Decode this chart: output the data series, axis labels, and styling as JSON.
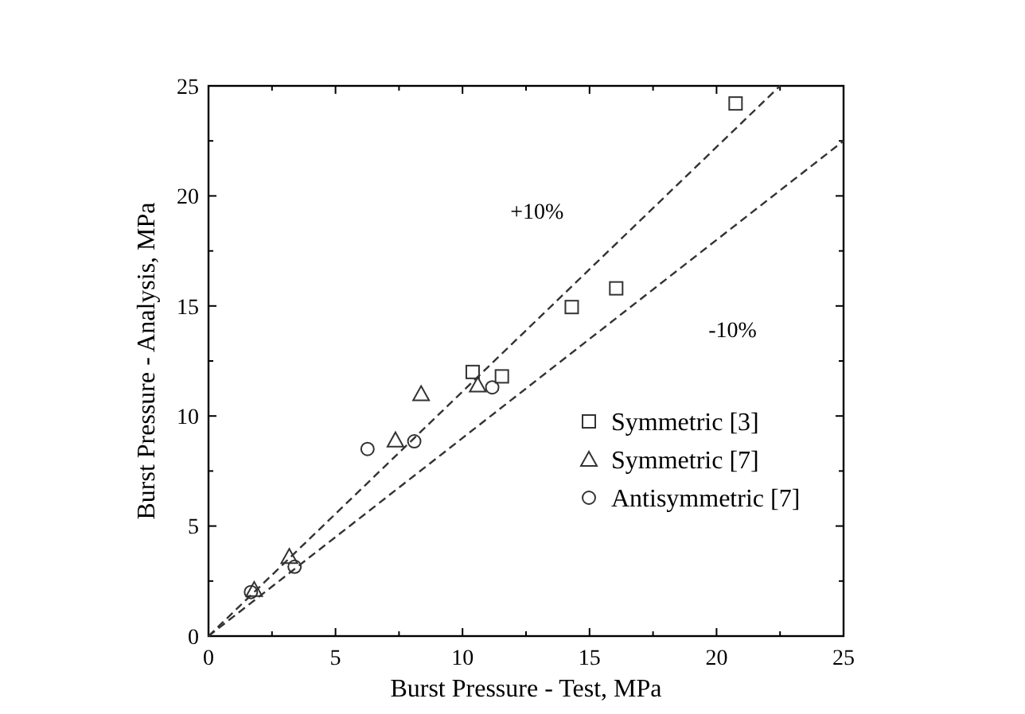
{
  "chart_data": {
    "type": "scatter",
    "xlabel": "Burst Pressure - Test, MPa",
    "ylabel": "Burst Pressure - Analysis, MPa",
    "xlim": [
      0,
      25
    ],
    "ylim": [
      0,
      25
    ],
    "xticks": [
      0,
      5,
      10,
      15,
      20,
      25
    ],
    "yticks": [
      0,
      5,
      10,
      15,
      20,
      25
    ],
    "grid": false,
    "legend": "bottom right",
    "series": [
      {
        "name": "Symmetric [3]",
        "color": "#333333",
        "marker": "square",
        "x": [
          10.4,
          11.55,
          14.3,
          16.05,
          20.75
        ],
        "values": [
          12.0,
          11.8,
          14.95,
          15.8,
          24.2
        ]
      },
      {
        "name": "Symmetric [7]",
        "color": "#333333",
        "marker": "triangle",
        "x": [
          1.8,
          3.18,
          7.36,
          8.37,
          10.6
        ],
        "values": [
          2.1,
          3.6,
          8.9,
          11.0,
          11.4
        ]
      },
      {
        "name": "Antisymmetric [7]",
        "color": "#333333",
        "marker": "circle",
        "x": [
          1.67,
          3.39,
          6.26,
          8.1,
          11.17
        ],
        "values": [
          2.0,
          3.15,
          8.5,
          8.85,
          11.3
        ]
      },
      {
        "type": "line",
        "color": "#333333",
        "line_style": "dashed",
        "x": [
          0,
          22.5
        ],
        "values": [
          0,
          25
        ]
      },
      {
        "type": "line",
        "color": "#333333",
        "line_style": "dashed",
        "x": [
          0,
          25
        ],
        "values": [
          0,
          22.5
        ]
      }
    ],
    "annotations": [
      "+10%",
      "-10%"
    ]
  }
}
